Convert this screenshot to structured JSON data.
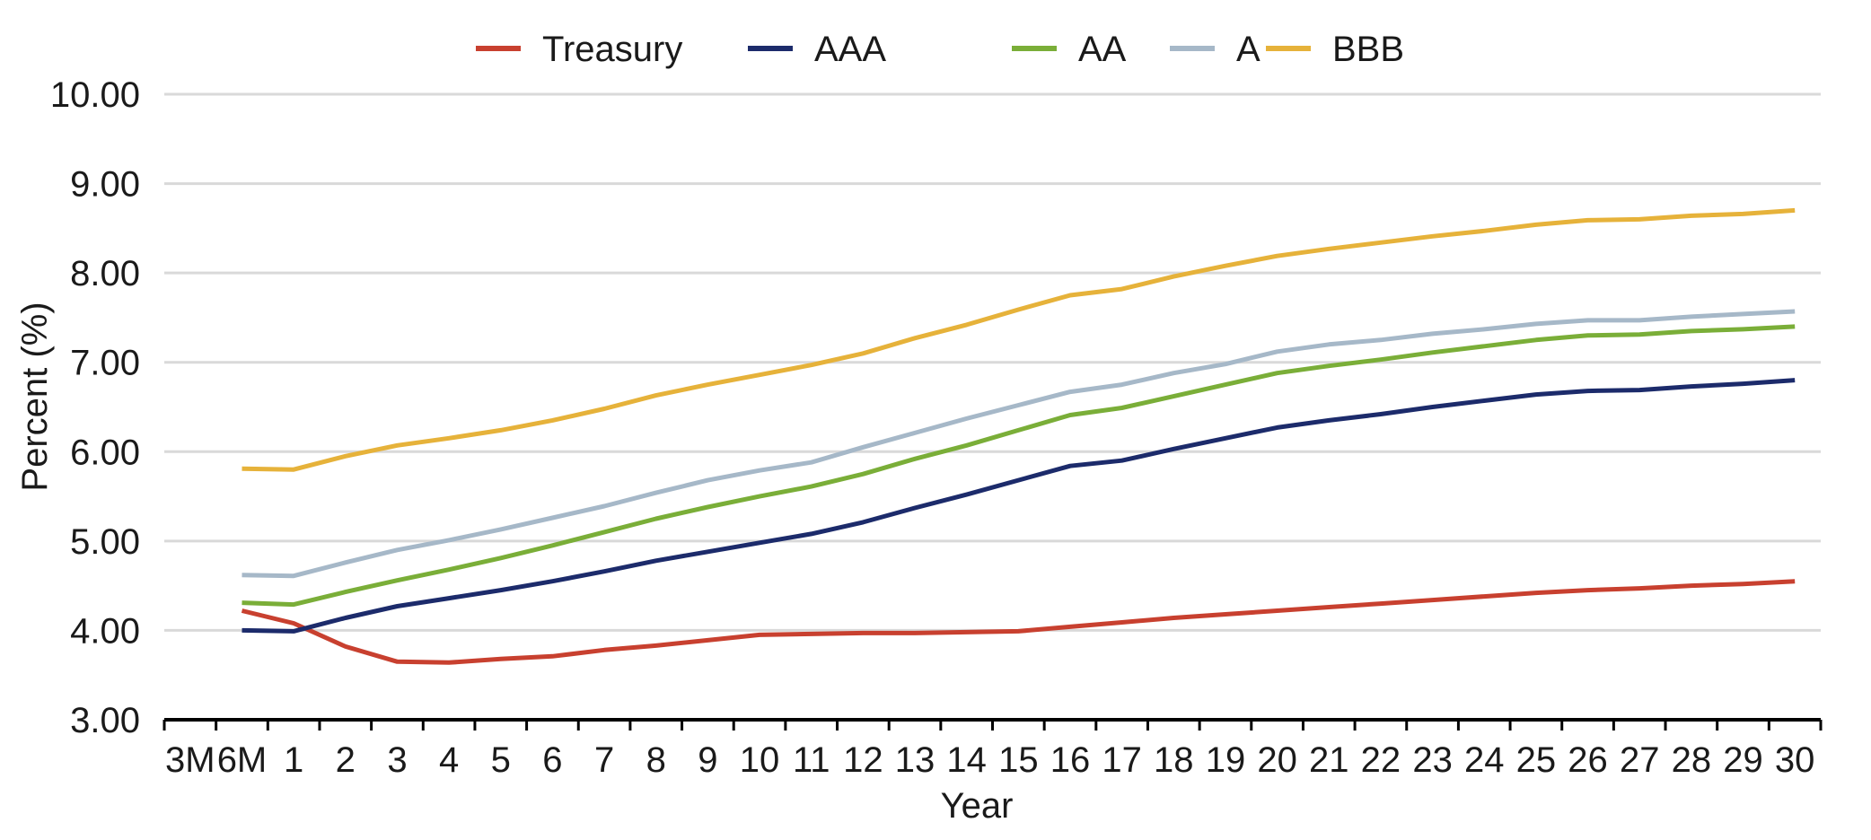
{
  "chart_data": {
    "type": "line",
    "title": "",
    "xlabel": "Year",
    "ylabel": "Percent (%)",
    "ylim": [
      3.0,
      10.0
    ],
    "yticks": [
      "3.00",
      "4.00",
      "5.00",
      "6.00",
      "7.00",
      "8.00",
      "9.00",
      "10.00"
    ],
    "categories": [
      "3M",
      "6M",
      "1",
      "2",
      "3",
      "4",
      "5",
      "6",
      "7",
      "8",
      "9",
      "10",
      "11",
      "12",
      "13",
      "14",
      "15",
      "16",
      "17",
      "18",
      "19",
      "20",
      "21",
      "22",
      "23",
      "24",
      "25",
      "26",
      "27",
      "28",
      "29",
      "30"
    ],
    "grid": "horizontal",
    "legend_position": "top",
    "series": [
      {
        "name": "Treasury",
        "color": "#c8402f",
        "values": [
          null,
          4.22,
          4.08,
          3.82,
          3.65,
          3.64,
          3.68,
          3.71,
          3.78,
          3.83,
          3.89,
          3.95,
          3.96,
          3.97,
          3.97,
          3.98,
          3.99,
          4.04,
          4.09,
          4.14,
          4.18,
          4.22,
          4.26,
          4.3,
          4.34,
          4.38,
          4.42,
          4.45,
          4.47,
          4.5,
          4.52,
          4.55
        ]
      },
      {
        "name": "AAA",
        "color": "#1c2b6b",
        "values": [
          null,
          4.0,
          3.99,
          4.14,
          4.27,
          4.36,
          4.45,
          4.55,
          4.66,
          4.78,
          4.88,
          4.98,
          5.08,
          5.21,
          5.37,
          5.52,
          5.68,
          5.84,
          5.9,
          6.03,
          6.15,
          6.27,
          6.35,
          6.42,
          6.5,
          6.57,
          6.64,
          6.68,
          6.69,
          6.73,
          6.76,
          6.8
        ]
      },
      {
        "name": "AA",
        "color": "#7aae38",
        "values": [
          null,
          4.31,
          4.29,
          4.43,
          4.56,
          4.68,
          4.81,
          4.95,
          5.1,
          5.25,
          5.38,
          5.5,
          5.61,
          5.75,
          5.92,
          6.07,
          6.24,
          6.41,
          6.49,
          6.62,
          6.75,
          6.88,
          6.96,
          7.03,
          7.11,
          7.18,
          7.25,
          7.3,
          7.31,
          7.35,
          7.37,
          7.4
        ]
      },
      {
        "name": "A",
        "color": "#a6b8c8",
        "values": [
          null,
          4.62,
          4.61,
          4.76,
          4.9,
          5.01,
          5.13,
          5.26,
          5.39,
          5.54,
          5.68,
          5.79,
          5.88,
          6.05,
          6.21,
          6.37,
          6.52,
          6.67,
          6.75,
          6.88,
          6.98,
          7.12,
          7.2,
          7.25,
          7.32,
          7.37,
          7.43,
          7.47,
          7.47,
          7.51,
          7.54,
          7.57
        ]
      },
      {
        "name": "BBB",
        "color": "#e6b23a",
        "values": [
          null,
          5.81,
          5.8,
          5.95,
          6.07,
          6.15,
          6.24,
          6.35,
          6.48,
          6.63,
          6.75,
          6.86,
          6.97,
          7.1,
          7.27,
          7.42,
          7.59,
          7.75,
          7.82,
          7.96,
          8.08,
          8.19,
          8.27,
          8.34,
          8.41,
          8.47,
          8.54,
          8.59,
          8.6,
          8.64,
          8.66,
          8.7
        ]
      }
    ]
  }
}
